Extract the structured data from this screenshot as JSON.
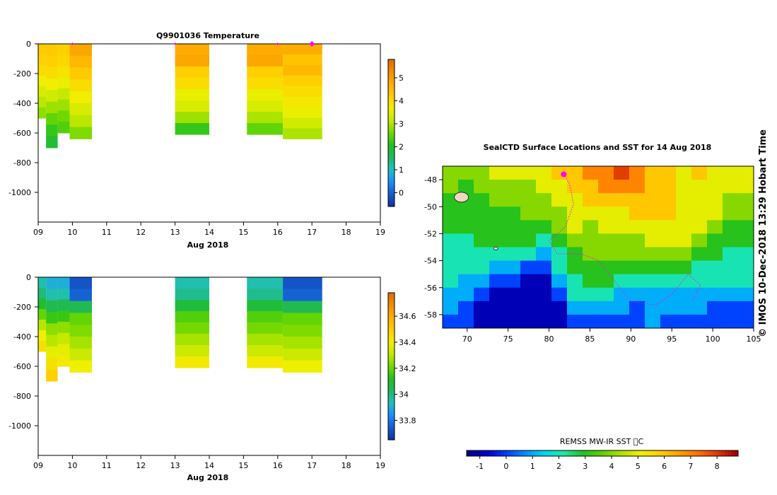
{
  "colors": {
    "jet": [
      "#00007f",
      "#0000d0",
      "#0040ff",
      "#0090ff",
      "#00d8f0",
      "#20e8a0",
      "#20c020",
      "#60d000",
      "#b0e000",
      "#f0f000",
      "#ffd000",
      "#ffa000",
      "#ff7000",
      "#e03800",
      "#a00000"
    ],
    "profile_scale": [
      "#1033a8",
      "#1560d0",
      "#1a90ff",
      "#20c0c0",
      "#20b860",
      "#20c020",
      "#70d800",
      "#c0e800",
      "#f0f000",
      "#ffd000",
      "#ffb000",
      "#f49000",
      "#e07000"
    ],
    "track": "#ff00ff"
  },
  "chart_data": [
    {
      "id": "temperature",
      "type": "heatmap",
      "title": "Q9901036  Temperature",
      "xlabel": "Aug 2018",
      "x_ticks": [
        "09",
        "10",
        "11",
        "12",
        "13",
        "14",
        "15",
        "16",
        "17",
        "18",
        "19"
      ],
      "x_range": [
        9,
        19
      ],
      "y_ticks": [
        0,
        -200,
        -400,
        -600,
        -800,
        -1000
      ],
      "ylim": [
        -1200,
        0
      ],
      "surface_markers_x": [
        10,
        13,
        16,
        17
      ],
      "profiles": [
        {
          "x0": 9.0,
          "x1": 9.23,
          "bottom": -500,
          "values": [
            4.3,
            4.2,
            4.0,
            3.7,
            3.4,
            3.1,
            2.8
          ]
        },
        {
          "x0": 9.23,
          "x1": 9.57,
          "bottom": -700,
          "values": [
            4.3,
            4.2,
            4.0,
            3.7,
            3.3,
            2.9,
            2.5,
            2.2,
            1.9
          ]
        },
        {
          "x0": 9.57,
          "x1": 9.92,
          "bottom": -600,
          "values": [
            4.2,
            4.1,
            3.9,
            3.6,
            3.2,
            2.9,
            2.6,
            2.4
          ]
        },
        {
          "x0": 9.92,
          "x1": 10.57,
          "bottom": -640,
          "values": [
            4.9,
            4.6,
            4.3,
            4.0,
            3.7,
            3.4,
            3.1,
            2.7
          ]
        },
        {
          "x0": 13.0,
          "x1": 14.0,
          "bottom": -610,
          "values": [
            4.8,
            4.9,
            4.2,
            4.0,
            3.6,
            3.4,
            2.9,
            2.2
          ]
        },
        {
          "x0": 15.1,
          "x1": 16.15,
          "bottom": -610,
          "values": [
            4.8,
            4.9,
            4.2,
            4.0,
            3.6,
            3.4,
            3.0,
            2.5
          ]
        },
        {
          "x0": 16.15,
          "x1": 17.3,
          "bottom": -640,
          "values": [
            4.8,
            4.4,
            4.6,
            4.2,
            4.0,
            3.8,
            3.6,
            3.3,
            3.0
          ]
        }
      ],
      "colorbar": {
        "min": -0.6,
        "max": 5.8,
        "ticks": [
          0,
          1,
          2,
          3,
          4,
          5
        ]
      }
    },
    {
      "id": "salinity",
      "type": "heatmap",
      "title": "",
      "xlabel": "Aug 2018",
      "x_ticks": [
        "09",
        "10",
        "11",
        "12",
        "13",
        "14",
        "15",
        "16",
        "17",
        "18",
        "19"
      ],
      "x_range": [
        9,
        19
      ],
      "y_ticks": [
        0,
        -200,
        -400,
        -600,
        -800,
        -1000
      ],
      "ylim": [
        -1200,
        0
      ],
      "profiles": [
        {
          "x0": 9.0,
          "x1": 9.23,
          "bottom": -500,
          "values": [
            33.95,
            34.0,
            34.1,
            34.2,
            34.3,
            34.4,
            34.45
          ]
        },
        {
          "x0": 9.23,
          "x1": 9.57,
          "bottom": -700,
          "values": [
            33.9,
            33.95,
            34.05,
            34.15,
            34.25,
            34.3,
            34.38,
            34.45,
            34.5
          ]
        },
        {
          "x0": 9.57,
          "x1": 9.92,
          "bottom": -600,
          "values": [
            33.9,
            33.95,
            34.05,
            34.15,
            34.25,
            34.32,
            34.38,
            34.42
          ]
        },
        {
          "x0": 9.92,
          "x1": 10.57,
          "bottom": -640,
          "values": [
            33.72,
            33.75,
            34.05,
            34.2,
            34.23,
            34.28,
            34.33,
            34.4
          ]
        },
        {
          "x0": 13.0,
          "x1": 14.0,
          "bottom": -610,
          "values": [
            33.95,
            33.98,
            34.08,
            34.18,
            34.22,
            34.28,
            34.33,
            34.42
          ]
        },
        {
          "x0": 15.1,
          "x1": 16.15,
          "bottom": -610,
          "values": [
            33.95,
            33.98,
            34.08,
            34.18,
            34.22,
            34.28,
            34.33,
            34.42
          ]
        },
        {
          "x0": 16.15,
          "x1": 17.3,
          "bottom": -640,
          "values": [
            33.72,
            33.75,
            34.05,
            34.2,
            34.23,
            34.28,
            34.33,
            34.4
          ]
        }
      ],
      "colorbar": {
        "min": 33.65,
        "max": 34.78,
        "ticks": [
          33.8,
          34,
          34.2,
          34.4,
          34.6
        ]
      }
    },
    {
      "id": "sst_map",
      "type": "heatmap",
      "title": "SealCTD Surface Locations and SST for 14 Aug 2018",
      "side_label": "© IMOS 10-Dec-2018 13:29 Hobart Time",
      "lon_ticks": [
        70,
        75,
        80,
        85,
        90,
        95,
        100,
        105
      ],
      "lat_ticks": [
        -48,
        -50,
        -52,
        -54,
        -56,
        -58
      ],
      "lon_range": [
        67,
        105
      ],
      "lat_range": [
        -59,
        -47
      ],
      "grid": [
        [
          4,
          4,
          4,
          5,
          5,
          5,
          5,
          6,
          6,
          7,
          7,
          8,
          7,
          6,
          6,
          5,
          6,
          5,
          5,
          5
        ],
        [
          4,
          3,
          4,
          4,
          4,
          4,
          5,
          5,
          6,
          6,
          7,
          7,
          7,
          6,
          6,
          5,
          5,
          5,
          5,
          5
        ],
        [
          3,
          3,
          3,
          4,
          4,
          4,
          4,
          5,
          5,
          6,
          6,
          6,
          6,
          6,
          6,
          5,
          5,
          5,
          4,
          4
        ],
        [
          3,
          3,
          3,
          3,
          3,
          4,
          4,
          4,
          5,
          5,
          5,
          5,
          6,
          6,
          6,
          5,
          5,
          5,
          4,
          4
        ],
        [
          3,
          3,
          3,
          3,
          3,
          3,
          3,
          4,
          5,
          4,
          5,
          5,
          5,
          5,
          5,
          5,
          5,
          4,
          3,
          3
        ],
        [
          2,
          2,
          3,
          3,
          3,
          3,
          2,
          3,
          4,
          4,
          4,
          4,
          4,
          5,
          5,
          5,
          4,
          3,
          3,
          3
        ],
        [
          2,
          2,
          2,
          2,
          2,
          2,
          1,
          2,
          3,
          4,
          4,
          4,
          4,
          4,
          4,
          4,
          3,
          3,
          2,
          2
        ],
        [
          2,
          2,
          2,
          1,
          1,
          0,
          0,
          2,
          3,
          3,
          3,
          3,
          3,
          3,
          3,
          3,
          2,
          2,
          2,
          2
        ],
        [
          2,
          1,
          1,
          0,
          0,
          -1,
          -1,
          1,
          2,
          3,
          3,
          2,
          2,
          2,
          2,
          2,
          2,
          2,
          2,
          2
        ],
        [
          1,
          1,
          0,
          -1,
          -1,
          -1,
          -1,
          0,
          2,
          2,
          2,
          1,
          1,
          1,
          1,
          1,
          1,
          1,
          1,
          1
        ],
        [
          1,
          0,
          -1,
          -1,
          -1,
          -1,
          -1,
          -1,
          1,
          1,
          1,
          1,
          0,
          1,
          1,
          1,
          1,
          0,
          0,
          0
        ],
        [
          0,
          0,
          -1,
          -1,
          -1,
          -1,
          -1,
          -1,
          0,
          0,
          0,
          0,
          0,
          1,
          0,
          0,
          0,
          0,
          0,
          0
        ]
      ],
      "track": [
        [
          81.8,
          -47.6
        ],
        [
          82.5,
          -48.3
        ],
        [
          83,
          -49.8
        ],
        [
          82,
          -51.5
        ],
        [
          80,
          -52.5
        ],
        [
          81,
          -53.5
        ],
        [
          84,
          -53.5
        ],
        [
          86,
          -54
        ],
        [
          88,
          -55.5
        ],
        [
          90,
          -57
        ],
        [
          93,
          -57.3
        ],
        [
          95,
          -56.5
        ],
        [
          97,
          -55
        ],
        [
          98.5,
          -55.8
        ],
        [
          97.5,
          -57
        ]
      ],
      "surface_marker": [
        81.8,
        -47.6
      ]
    }
  ],
  "sst_colorbar": {
    "label": "REMSS MW-IR SST ⃞C",
    "min": -1.5,
    "max": 8.8,
    "ticks": [
      "-1",
      "0",
      "1",
      "2",
      "3",
      "4",
      "5",
      "6",
      "7",
      "8"
    ]
  }
}
